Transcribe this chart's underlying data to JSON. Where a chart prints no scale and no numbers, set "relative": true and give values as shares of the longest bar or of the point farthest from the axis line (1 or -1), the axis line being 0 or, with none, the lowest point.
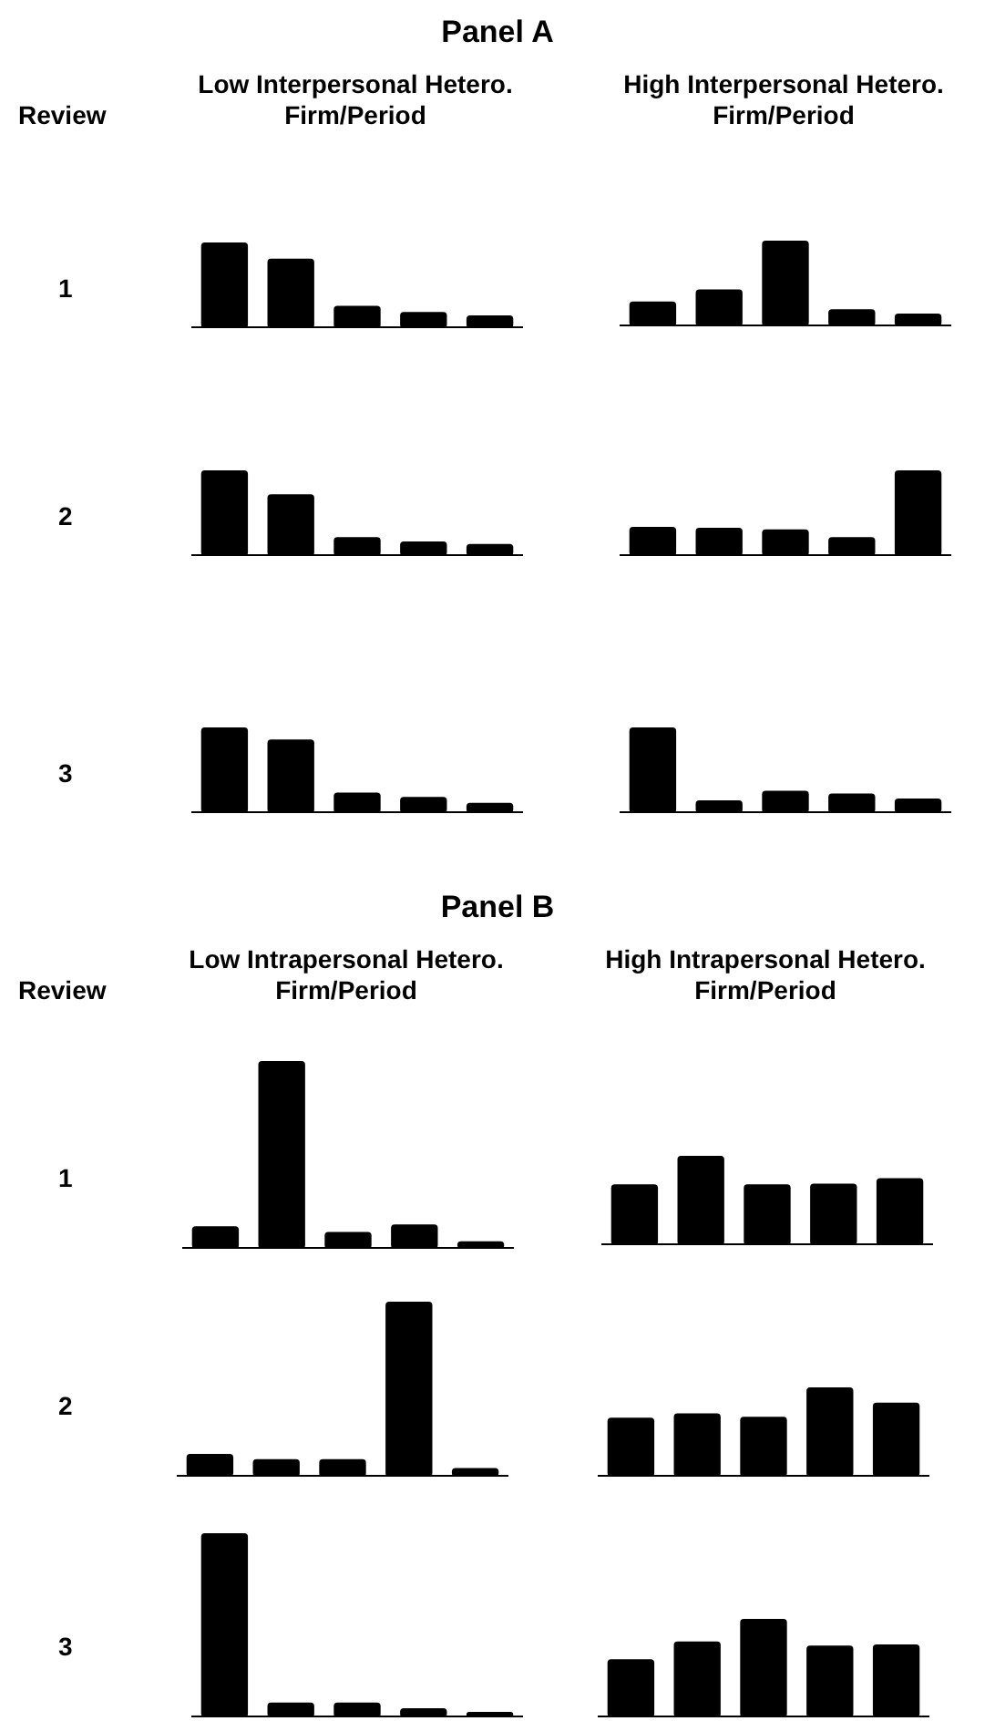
{
  "chart_data": [
    {
      "type": "bar",
      "title": "Low Interpersonal Hetero.",
      "subtitle": "Firm/Period",
      "ylabel": "1",
      "annotations": [
        "Panel A",
        "Review"
      ],
      "categories": [
        null,
        null,
        null,
        null,
        null
      ],
      "values": [
        1,
        0.81,
        0.26,
        0.19,
        0.15
      ],
      "color": "#000000",
      "relative": true
    },
    {
      "type": "bar",
      "title": "High Interpersonal Hetero.",
      "subtitle": "Firm/Period",
      "categories": [
        null,
        null,
        null,
        null,
        null
      ],
      "values": [
        0.29,
        0.43,
        1,
        0.2,
        0.15
      ],
      "color": "#000000",
      "relative": true
    },
    {
      "type": "bar",
      "ylabel": "2",
      "categories": [
        null,
        null,
        null,
        null,
        null
      ],
      "values": [
        1,
        0.72,
        0.22,
        0.17,
        0.14
      ],
      "color": "#000000",
      "relative": true
    },
    {
      "type": "bar",
      "categories": [
        null,
        null,
        null,
        null,
        null
      ],
      "values": [
        0.34,
        0.33,
        0.31,
        0.22,
        1
      ],
      "color": "#000000",
      "relative": true
    },
    {
      "type": "bar",
      "ylabel": "3",
      "categories": [
        null,
        null,
        null,
        null,
        null
      ],
      "values": [
        1,
        0.86,
        0.24,
        0.19,
        0.12
      ],
      "color": "#000000",
      "relative": true
    },
    {
      "type": "bar",
      "categories": [
        null,
        null,
        null,
        null,
        null
      ],
      "values": [
        1,
        0.15,
        0.26,
        0.23,
        0.17
      ],
      "color": "#000000",
      "relative": true
    },
    {
      "type": "bar",
      "title": "Low Intrapersonal Hetero.",
      "subtitle": "Firm/Period",
      "ylabel": "1",
      "annotations": [
        "Panel B",
        "Review"
      ],
      "categories": [
        null,
        null,
        null,
        null,
        null
      ],
      "values": [
        0.12,
        1,
        0.09,
        0.13,
        0.04
      ],
      "color": "#000000",
      "relative": true
    },
    {
      "type": "bar",
      "title": "High Intrapersonal Hetero.",
      "subtitle": "Firm/Period",
      "categories": [
        null,
        null,
        null,
        null,
        null
      ],
      "values": [
        0.68,
        1,
        0.68,
        0.69,
        0.75
      ],
      "color": "#000000",
      "relative": true
    },
    {
      "type": "bar",
      "ylabel": "2",
      "categories": [
        null,
        null,
        null,
        null,
        null
      ],
      "values": [
        0.13,
        0.1,
        0.1,
        1,
        0.05
      ],
      "color": "#000000",
      "relative": true
    },
    {
      "type": "bar",
      "categories": [
        null,
        null,
        null,
        null,
        null
      ],
      "values": [
        0.66,
        0.71,
        0.67,
        1,
        0.83
      ],
      "color": "#000000",
      "relative": true
    },
    {
      "type": "bar",
      "ylabel": "3",
      "categories": [
        null,
        null,
        null,
        null,
        null
      ],
      "values": [
        1,
        0.08,
        0.08,
        0.05,
        0.03
      ],
      "color": "#000000",
      "relative": true
    },
    {
      "type": "bar",
      "categories": [
        null,
        null,
        null,
        null,
        null
      ],
      "values": [
        0.59,
        0.77,
        1,
        0.73,
        0.74
      ],
      "color": "#000000",
      "relative": true
    }
  ]
}
